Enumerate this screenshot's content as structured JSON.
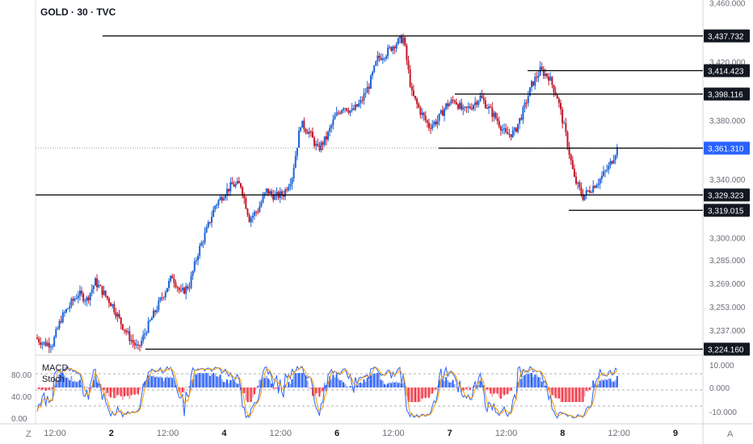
{
  "title": "GOLD · 30 · TVC",
  "indicators": {
    "macd_label": "MACD",
    "stoch_label": "Stoch"
  },
  "corner_left": "Z",
  "corner_right": "A",
  "colors": {
    "up": "#1e63d6",
    "down": "#c2182b",
    "line": "#000000",
    "price_badge": "#2962ff"
  },
  "chart_data": {
    "type": "candlestick",
    "ylim": [
      3220,
      3462
    ],
    "y_ticks": [
      "3,460.000",
      "3,420.000",
      "3,380.000",
      "3,340.000",
      "3,300.000",
      "3,285.000",
      "3,269.000",
      "3,253.000",
      "3,237.000"
    ],
    "x_ticks": [
      "12:00",
      "2",
      "12:00",
      "4",
      "12:00",
      "6",
      "12:00",
      "7",
      "12:00",
      "8",
      "12:00",
      "9"
    ],
    "current_price": "3,361.310",
    "levels": [
      {
        "value": 3437.732,
        "label": "3,437.732"
      },
      {
        "value": 3414.423,
        "label": "3,414.423"
      },
      {
        "value": 3398.116,
        "label": "3,398.116"
      },
      {
        "value": 3361.31,
        "label": "3,361.310"
      },
      {
        "value": 3329.323,
        "label": "3,329.323"
      },
      {
        "value": 3319.015,
        "label": "3,319.015"
      },
      {
        "value": 3224.16,
        "label": "3,224.160"
      }
    ],
    "path": [
      3232,
      3228,
      3228,
      3245,
      3254,
      3262,
      3258,
      3270,
      3262,
      3254,
      3242,
      3232,
      3224,
      3238,
      3250,
      3262,
      3274,
      3262,
      3268,
      3290,
      3305,
      3322,
      3330,
      3336,
      3336,
      3313,
      3319,
      3332,
      3328,
      3330,
      3342,
      3378,
      3372,
      3360,
      3368,
      3382,
      3390,
      3386,
      3392,
      3404,
      3422,
      3426,
      3432,
      3436,
      3398,
      3386,
      3376,
      3380,
      3390,
      3394,
      3386,
      3390,
      3396,
      3388,
      3380,
      3370,
      3372,
      3386,
      3404,
      3414,
      3410,
      3396,
      3370,
      3340,
      3328,
      3334,
      3340,
      3348,
      3361
    ],
    "stoch_ticks": [
      "80.00",
      "40.00",
      "0.00"
    ],
    "macd_ticks": [
      "10.000",
      "0.000",
      "-10.000"
    ]
  }
}
